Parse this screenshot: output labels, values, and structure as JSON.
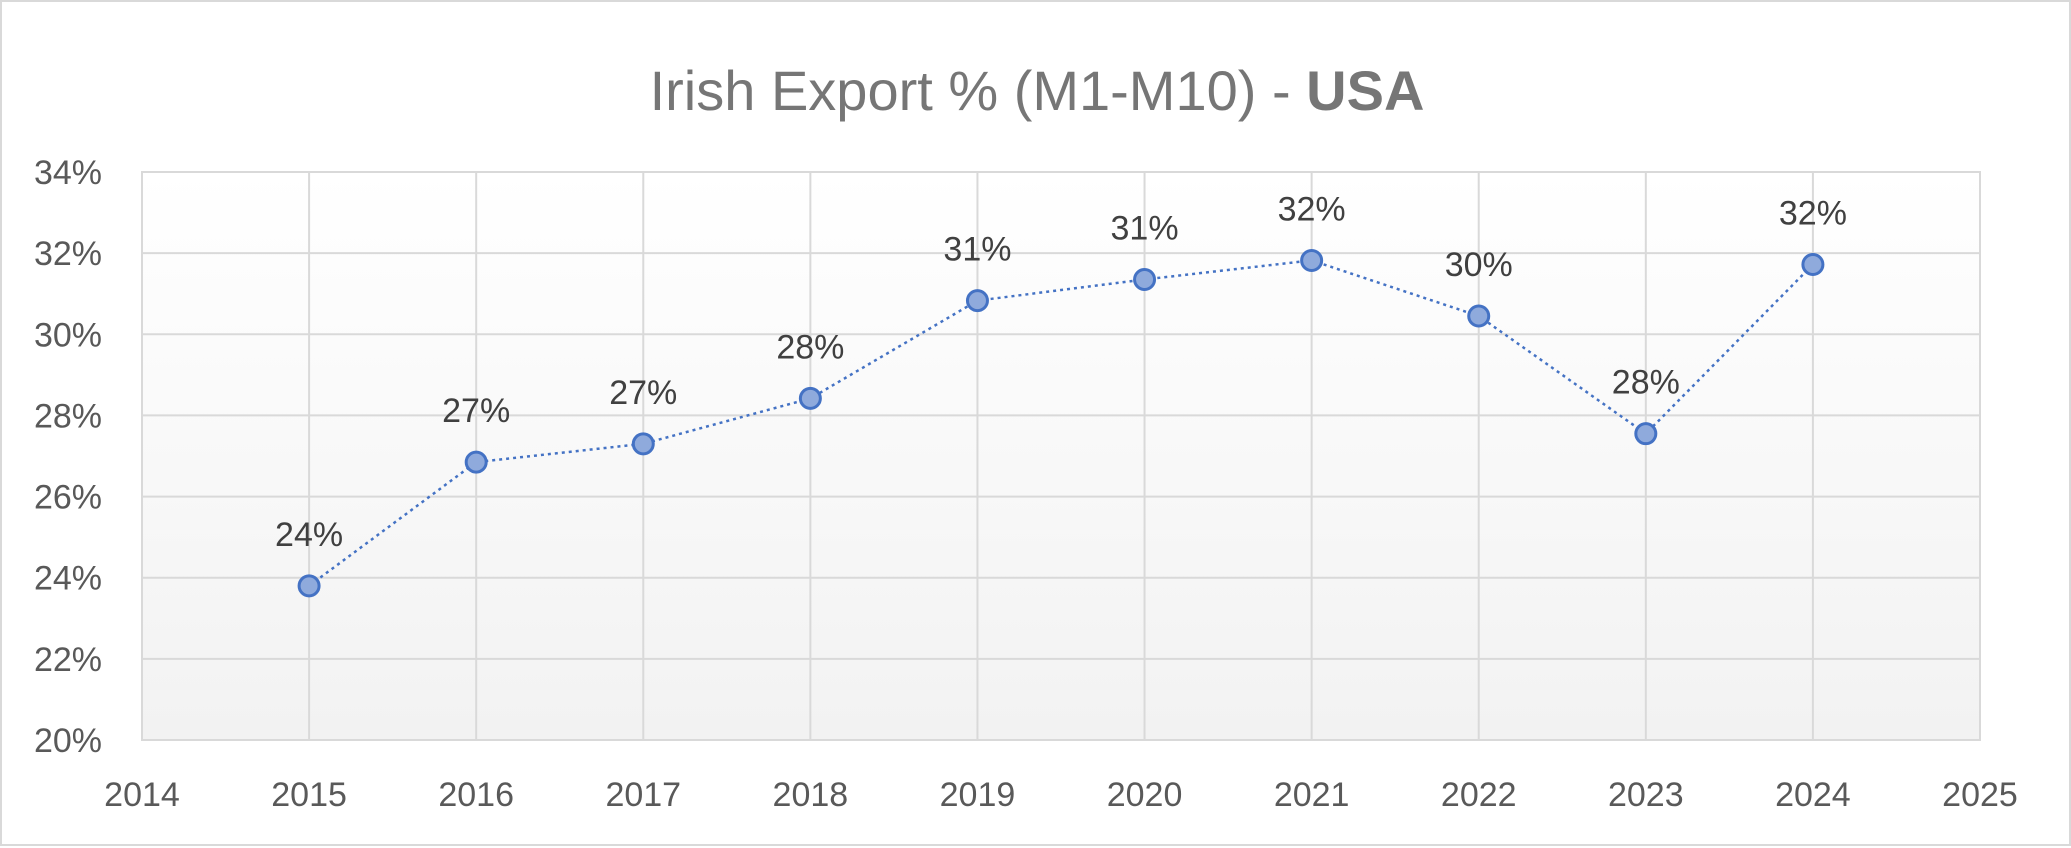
{
  "chart_data": {
    "type": "line",
    "title": "Irish Export % (M1-M10) - ",
    "title_bold": "USA",
    "xlabel": "",
    "ylabel": "",
    "x": [
      2015,
      2016,
      2017,
      2018,
      2019,
      2020,
      2021,
      2022,
      2023,
      2024
    ],
    "series": [
      {
        "name": "",
        "values": [
          23.8,
          26.85,
          27.3,
          28.42,
          30.83,
          31.35,
          31.82,
          30.45,
          27.55,
          31.72
        ],
        "labels": [
          "24%",
          "27%",
          "27%",
          "28%",
          "31%",
          "31%",
          "32%",
          "30%",
          "28%",
          "32%"
        ],
        "line_color": "#4472c4",
        "marker_fill": "#8faadc",
        "line_style": "dotted"
      }
    ],
    "xlim": [
      2014,
      2025
    ],
    "ylim": [
      20,
      34
    ],
    "x_ticks": [
      "2014",
      "2015",
      "2016",
      "2017",
      "2018",
      "2019",
      "2020",
      "2021",
      "2022",
      "2023",
      "2024",
      "2025"
    ],
    "y_ticks": [
      "20%",
      "22%",
      "24%",
      "26%",
      "28%",
      "30%",
      "32%",
      "34%"
    ],
    "grid": true,
    "legend": "none"
  }
}
